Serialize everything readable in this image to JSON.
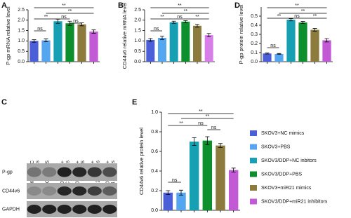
{
  "chart_data": [
    {
      "type": "bar",
      "panel": "A",
      "y_label": "P-gp mRNA relative level",
      "values": [
        1.0,
        1.03,
        1.95,
        1.85,
        1.8,
        1.45
      ],
      "errors": [
        0.06,
        0.07,
        0.1,
        0.1,
        0.07,
        0.08
      ],
      "colors": [
        "#4b5fd8",
        "#55a6f0",
        "#17a0b4",
        "#0e8f2e",
        "#8c7b3c",
        "#c25ad6"
      ],
      "ylim": [
        0,
        2.5
      ],
      "yticks": [
        {
          "value": 0,
          "label": "0.0"
        },
        {
          "value": 0.5,
          "label": "0.5"
        },
        {
          "value": 1,
          "label": "1.0"
        },
        {
          "value": 1.5,
          "label": "1.5"
        },
        {
          "value": 2,
          "label": "2.0"
        },
        {
          "value": 2.5,
          "label": "2.5"
        }
      ],
      "annotations": [
        "**",
        "**",
        "**",
        "ns",
        "ns",
        "ns"
      ]
    },
    {
      "type": "bar",
      "panel": "B",
      "y_label": "CD44v6 relative mRNA level",
      "values": [
        1.05,
        1.15,
        1.9,
        1.93,
        1.73,
        1.28
      ],
      "errors": [
        0.07,
        0.08,
        0.05,
        0.05,
        0.07,
        0.08
      ],
      "colors": [
        "#4b5fd8",
        "#55a6f0",
        "#17a0b4",
        "#0e8f2e",
        "#8c7b3c",
        "#d77ee8"
      ],
      "ylim": [
        0,
        2.5
      ],
      "yticks": [
        {
          "value": 0,
          "label": "0.0"
        },
        {
          "value": 0.5,
          "label": "0.5"
        },
        {
          "value": 1,
          "label": "1.0"
        },
        {
          "value": 1.5,
          "label": "1.5"
        },
        {
          "value": 2,
          "label": "2.0"
        },
        {
          "value": 2.5,
          "label": "2.5"
        }
      ],
      "annotations": [
        "**",
        "**",
        "**",
        "ns",
        "**",
        "ns"
      ]
    },
    {
      "type": "bar",
      "panel": "D",
      "y_label": "P-gp protein relative level",
      "values": [
        0.09,
        0.085,
        0.46,
        0.43,
        0.35,
        0.235
      ],
      "errors": [
        0.005,
        0.005,
        0.012,
        0.012,
        0.015,
        0.018
      ],
      "colors": [
        "#4b5fd8",
        "#55a6f0",
        "#17a0b4",
        "#0e8f2e",
        "#8c7b3c",
        "#c25ad6"
      ],
      "ylim": [
        0,
        0.6
      ],
      "yticks": [
        {
          "value": 0,
          "label": "0.0"
        },
        0.1,
        0.2,
        0.3,
        0.4,
        0.5
      ],
      "annotations": [
        "**",
        "**",
        "**",
        "ns",
        "**",
        "ns"
      ]
    },
    {
      "type": "bar",
      "panel": "E",
      "y_label": "CD44v6 relative protein level",
      "values": [
        0.18,
        0.18,
        0.7,
        0.71,
        0.66,
        0.41
      ],
      "errors": [
        0.02,
        0.025,
        0.04,
        0.04,
        0.02,
        0.02
      ],
      "colors": [
        "#4b5fd8",
        "#55a6f0",
        "#17a0b4",
        "#0e8f2e",
        "#8c7b3c",
        "#c25ad6"
      ],
      "ylim": [
        0,
        1
      ],
      "yticks": [
        {
          "value": 0,
          "label": "0.0"
        },
        0.2,
        0.4,
        0.6,
        0.8,
        {
          "value": 1,
          "label": "1.0"
        }
      ],
      "annotations": [
        "**",
        "**",
        "**",
        "ns",
        "ns",
        "ns"
      ],
      "legend": [
        "SKOV3+NC mimics",
        "SKOV3+PBS",
        "SKOV3/DDP+NC inbitors",
        "SKOV3/DDP+PBS",
        "SKOV3+miR21 mimics",
        "SKOV3/DDP+miR21 inhibitors"
      ]
    }
  ],
  "blot": {
    "panel": "C",
    "lanes": [
      [
        "SKOV3+NC",
        "mimics"
      ],
      [
        "SKOV3+PBS"
      ],
      [
        "SKOV3/DDP+",
        "NC inhibitors"
      ],
      [
        "SKOV3/DDP+",
        "PBS"
      ],
      [
        "SKOV3+",
        "miR21 mimics"
      ],
      [
        "SKOV3/DDP+",
        "miR21 inhibitors"
      ]
    ],
    "rows": [
      "P-gp",
      "CD44v6",
      "GAPDH"
    ]
  }
}
